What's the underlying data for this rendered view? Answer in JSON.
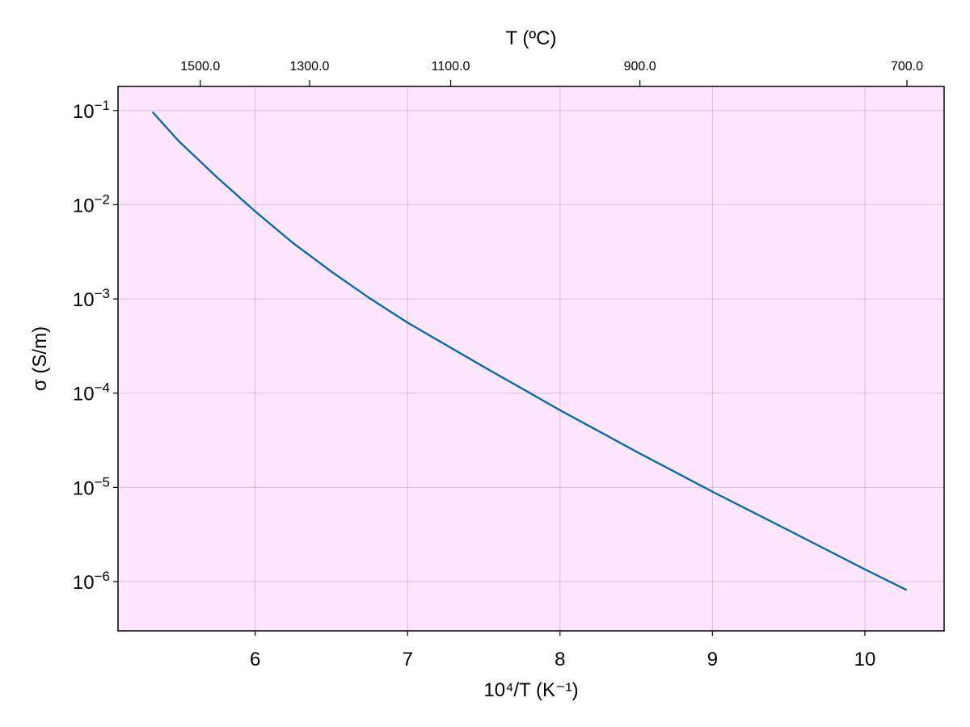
{
  "chart_data": {
    "type": "line",
    "xlabel": "10⁴/T (K⁻¹)",
    "top_xlabel": "T (ºC)",
    "ylabel": "σ (S/m)",
    "y_scale": "log10",
    "grid": true,
    "background_color": "#fee6fe",
    "line_color": "#0b6aa8",
    "xlim": [
      5.1,
      10.52
    ],
    "ylim": [
      3e-07,
      0.18
    ],
    "x_ticks": [
      6,
      7,
      8,
      9,
      10
    ],
    "x_tick_labels": [
      "6",
      "7",
      "8",
      "9",
      "10"
    ],
    "y_tick_values": [
      1e-06,
      1e-05,
      0.0001,
      0.001,
      0.01,
      0.1
    ],
    "y_tick_exponents": [
      "−6",
      "−5",
      "−4",
      "−3",
      "−2",
      "−1"
    ],
    "y_tick_base": "10",
    "top_ticks_celsius": [
      1500.0,
      1300.0,
      1100.0,
      900.0,
      700.0
    ],
    "top_tick_labels": [
      "1500.0",
      "1300.0",
      "1100.0",
      "900.0",
      "700.0"
    ],
    "series": [
      {
        "x": [
          5.33,
          5.5,
          5.75,
          6.0,
          6.25,
          6.5,
          6.75,
          7.0,
          7.5,
          8.0,
          8.5,
          9.0,
          9.5,
          10.0,
          10.27
        ],
        "y": [
          0.095,
          0.047,
          0.0195,
          0.0085,
          0.0039,
          0.00195,
          0.00102,
          0.00056,
          0.00019,
          6.6e-05,
          2.4e-05,
          9e-06,
          3.5e-06,
          1.35e-06,
          8.2e-07
        ]
      }
    ]
  }
}
